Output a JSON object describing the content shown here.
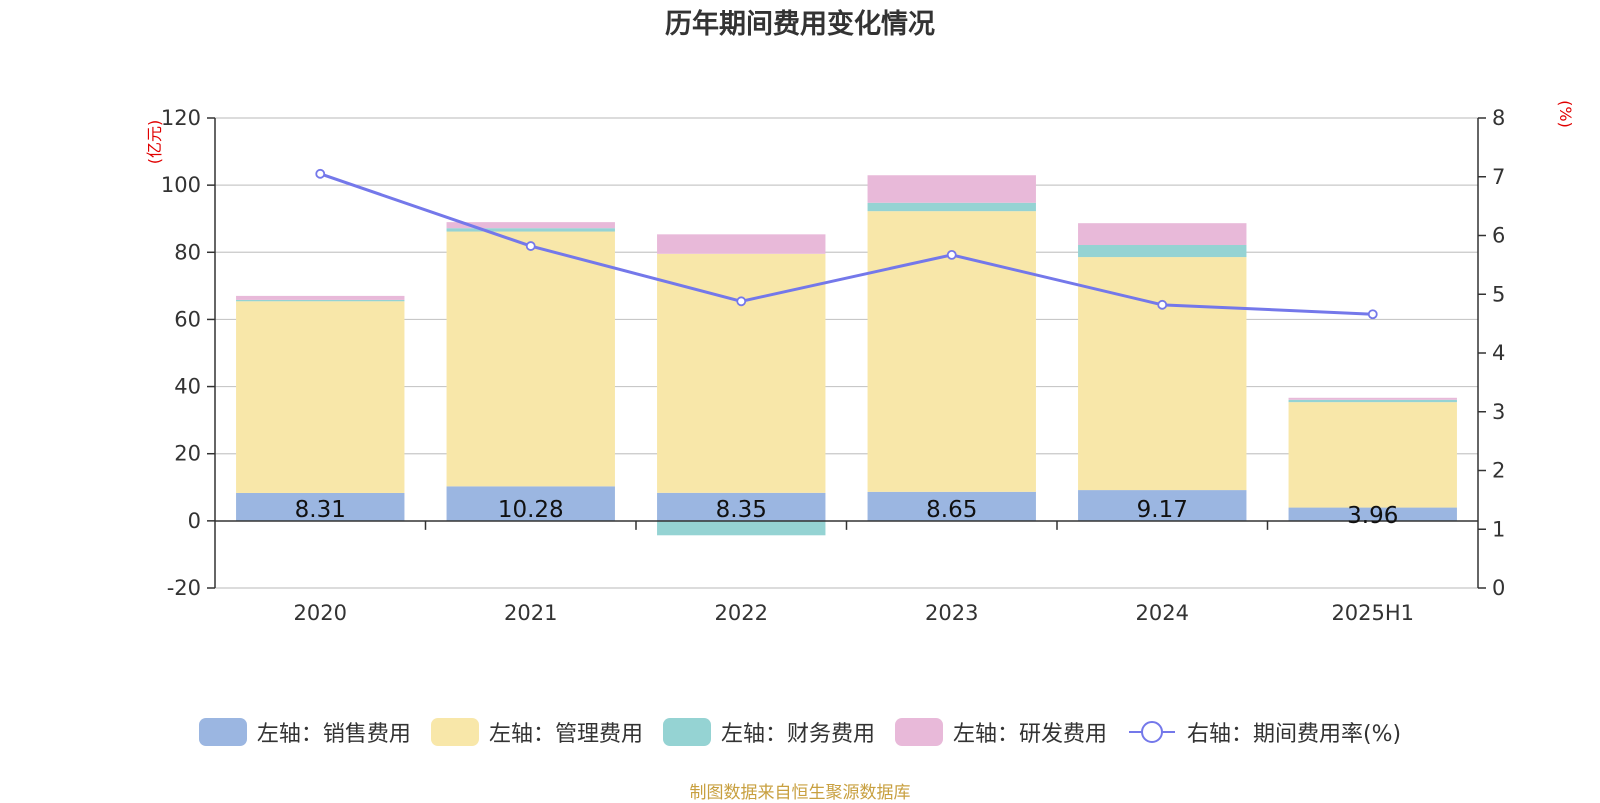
{
  "title": "历年期间费用变化情况",
  "source_note": "制图数据来自恒生聚源数据库",
  "colors": {
    "sales": "#9bb6e1",
    "admin": "#f8e7a9",
    "finance": "#95d3d3",
    "rnd": "#e8b9d9",
    "rate_line": "#7478ea"
  },
  "chart_data": {
    "type": "bar",
    "stacked": true,
    "categories": [
      "2020",
      "2021",
      "2022",
      "2023",
      "2024",
      "2025H1"
    ],
    "left_axis": {
      "unit": "(亿元)",
      "ylim": [
        -20,
        120
      ],
      "ticks": [
        "120",
        "100",
        "80",
        "60",
        "40",
        "20",
        "0",
        "-20"
      ]
    },
    "right_axis": {
      "unit": "(%)",
      "ylim": [
        0,
        8
      ],
      "ticks": [
        "8",
        "7",
        "6",
        "5",
        "4",
        "3",
        "2",
        "1",
        "0"
      ]
    },
    "grid": true,
    "legend_position": "bottom",
    "series": [
      {
        "name": "左轴：销售费用",
        "axis": "left",
        "type": "bar",
        "color_key": "sales",
        "values": [
          8.31,
          10.28,
          8.35,
          8.65,
          9.17,
          3.96
        ],
        "labels": [
          "8.31",
          "10.28",
          "8.35",
          "8.65",
          "9.17",
          "3.96"
        ]
      },
      {
        "name": "左轴：管理费用",
        "axis": "left",
        "type": "bar",
        "color_key": "admin",
        "values": [
          57.1,
          75.9,
          71.2,
          83.6,
          69.4,
          31.4
        ]
      },
      {
        "name": "左轴：财务费用",
        "axis": "left",
        "type": "bar",
        "color_key": "finance",
        "values": [
          0.4,
          1.0,
          -4.3,
          2.5,
          3.6,
          0.7
        ]
      },
      {
        "name": "左轴：研发费用",
        "axis": "left",
        "type": "bar",
        "color_key": "rnd",
        "values": [
          1.2,
          1.8,
          5.8,
          8.2,
          6.5,
          0.6
        ]
      },
      {
        "name": "右轴：期间费用率(%)",
        "axis": "right",
        "type": "line",
        "color_key": "rate_line",
        "values": [
          7.05,
          5.82,
          4.88,
          5.67,
          4.82,
          4.66
        ]
      }
    ]
  }
}
